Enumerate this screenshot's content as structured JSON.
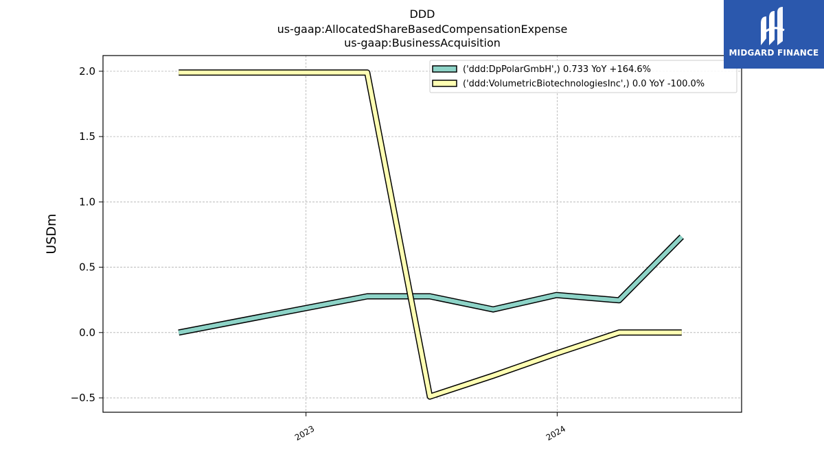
{
  "brand": {
    "name": "MIDGARD FINANCE",
    "bg_color": "#2b58ad"
  },
  "chart_data": {
    "type": "line",
    "title_lines": [
      "DDD",
      "us-gaap:AllocatedShareBasedCompensationExpense",
      "us-gaap:BusinessAcquisition"
    ],
    "ylabel": "USDm",
    "xlabel": "",
    "x_ticks": [
      "2023",
      "2024"
    ],
    "y_ticks": [
      "2.0",
      "1.5",
      "1.0",
      "0.5",
      "0.0",
      "−0.5"
    ],
    "y_tick_values": [
      2.0,
      1.5,
      1.0,
      0.5,
      0.0,
      -0.5
    ],
    "ylim": [
      -0.61,
      2.12
    ],
    "xlim": [
      "2022-03-12",
      "2024-09-25"
    ],
    "grid": true,
    "legend_position": "top-right",
    "series": [
      {
        "name": "('ddd:DpPolarGmbH',) 0.733 YoY +164.6%",
        "color": "#8dd3c7",
        "points": [
          [
            "2022-06-30",
            0.0
          ],
          [
            "2023-03-31",
            0.277
          ],
          [
            "2023-06-30",
            0.277
          ],
          [
            "2023-09-30",
            0.177
          ],
          [
            "2023-12-31",
            0.287
          ],
          [
            "2024-03-31",
            0.247
          ],
          [
            "2024-06-30",
            0.733
          ]
        ]
      },
      {
        "name": "('ddd:VolumetricBiotechnologiesInc',) 0.0 YoY -100.0%",
        "color": "#ffffb3",
        "points": [
          [
            "2022-06-30",
            1.99
          ],
          [
            "2023-03-31",
            1.99
          ],
          [
            "2023-06-30",
            -0.49
          ],
          [
            "2023-09-30",
            -0.33
          ],
          [
            "2023-12-31",
            -0.16
          ],
          [
            "2024-03-31",
            0.0
          ],
          [
            "2024-06-30",
            0.0
          ]
        ]
      }
    ]
  }
}
